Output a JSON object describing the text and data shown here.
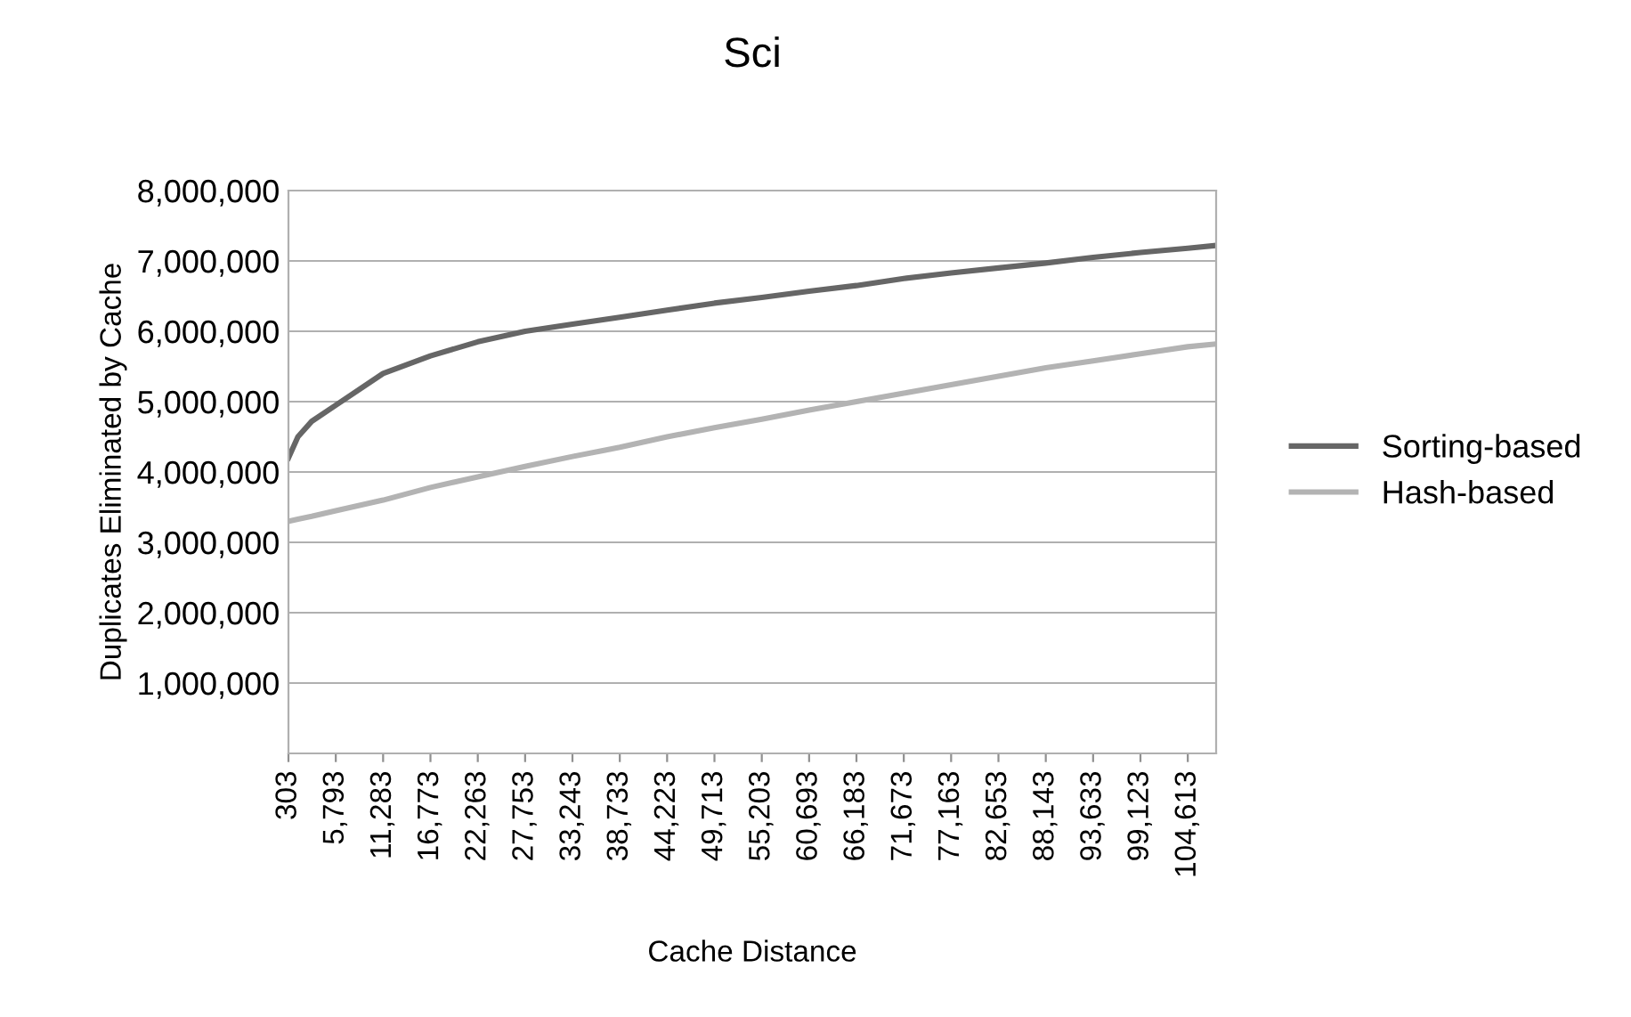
{
  "chart_data": {
    "type": "line",
    "title": "Sci",
    "xlabel": "Cache Distance",
    "ylabel": "Duplicates Eliminated by Cache",
    "xlim": [
      303,
      107900
    ],
    "xticks": [
      {
        "value": 303,
        "label": "303"
      },
      {
        "value": 5793,
        "label": "5,793"
      },
      {
        "value": 11283,
        "label": "11,283"
      },
      {
        "value": 16773,
        "label": "16,773"
      },
      {
        "value": 22263,
        "label": "22,263"
      },
      {
        "value": 27753,
        "label": "27,753"
      },
      {
        "value": 33243,
        "label": "33,243"
      },
      {
        "value": 38733,
        "label": "38,733"
      },
      {
        "value": 44223,
        "label": "44,223"
      },
      {
        "value": 49713,
        "label": "49,713"
      },
      {
        "value": 55203,
        "label": "55,203"
      },
      {
        "value": 60693,
        "label": "60,693"
      },
      {
        "value": 66183,
        "label": "66,183"
      },
      {
        "value": 71673,
        "label": "71,673"
      },
      {
        "value": 77163,
        "label": "77,163"
      },
      {
        "value": 82653,
        "label": "82,653"
      },
      {
        "value": 88143,
        "label": "88,143"
      },
      {
        "value": 93633,
        "label": "93,633"
      },
      {
        "value": 99123,
        "label": "99,123"
      },
      {
        "value": 104613,
        "label": "104,613"
      }
    ],
    "ylim": [
      0,
      8000000
    ],
    "yticks": [
      {
        "value": 0,
        "label": null
      },
      {
        "value": 1000000,
        "label": "1,000,000"
      },
      {
        "value": 2000000,
        "label": "2,000,000"
      },
      {
        "value": 3000000,
        "label": "3,000,000"
      },
      {
        "value": 4000000,
        "label": "4,000,000"
      },
      {
        "value": 5000000,
        "label": "5,000,000"
      },
      {
        "value": 6000000,
        "label": "6,000,000"
      },
      {
        "value": 7000000,
        "label": "7,000,000"
      },
      {
        "value": 8000000,
        "label": "8,000,000"
      }
    ],
    "x": [
      303,
      1400,
      3000,
      5793,
      11283,
      16773,
      22263,
      27753,
      33243,
      38733,
      44223,
      49713,
      55203,
      60693,
      66183,
      71673,
      77163,
      82653,
      88143,
      93633,
      99123,
      104613,
      107900
    ],
    "series": [
      {
        "name": "Sorting-based",
        "color": "#666666",
        "values": [
          4200000,
          4500000,
          4720000,
          4950000,
          5400000,
          5650000,
          5850000,
          6000000,
          6100000,
          6200000,
          6300000,
          6400000,
          6480000,
          6570000,
          6650000,
          6750000,
          6830000,
          6900000,
          6970000,
          7050000,
          7120000,
          7180000,
          7220000
        ]
      },
      {
        "name": "Hash-based",
        "color": "#b3b3b3",
        "values": [
          3300000,
          3330000,
          3370000,
          3450000,
          3600000,
          3780000,
          3930000,
          4080000,
          4220000,
          4350000,
          4500000,
          4630000,
          4750000,
          4880000,
          5000000,
          5120000,
          5240000,
          5360000,
          5480000,
          5580000,
          5680000,
          5780000,
          5820000
        ]
      }
    ],
    "grid": "y",
    "legend": "right",
    "marker": "none"
  }
}
